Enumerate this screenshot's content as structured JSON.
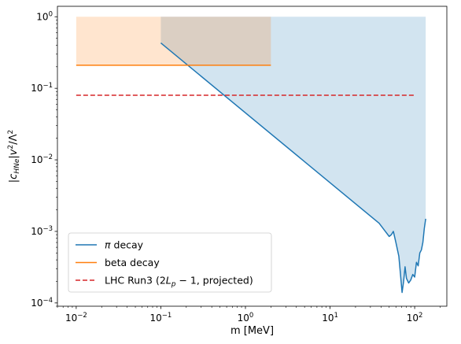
{
  "chart_data": {
    "type": "line",
    "title": "",
    "xlabel": "m [MeV]",
    "ylabel": "|c_HNe| v²/Λ²",
    "x_scale": "log",
    "y_scale": "log",
    "xlim": [
      0.006,
      240
    ],
    "ylim": [
      9e-05,
      1.4
    ],
    "x_ticks": [
      {
        "value": 0.01,
        "base": "10",
        "exp": "−2"
      },
      {
        "value": 0.1,
        "base": "10",
        "exp": "−1"
      },
      {
        "value": 1,
        "base": "10",
        "exp": "0"
      },
      {
        "value": 10,
        "base": "10",
        "exp": "1"
      },
      {
        "value": 100,
        "base": "10",
        "exp": "2"
      }
    ],
    "y_ticks": [
      {
        "value": 0.0001,
        "base": "10",
        "exp": "−4"
      },
      {
        "value": 0.001,
        "base": "10",
        "exp": "−3"
      },
      {
        "value": 0.01,
        "base": "10",
        "exp": "−2"
      },
      {
        "value": 0.1,
        "base": "10",
        "exp": "−1"
      },
      {
        "value": 1,
        "base": "10",
        "exp": "0"
      }
    ],
    "legend_position": "lower-left",
    "series": [
      {
        "name": "π decay",
        "legend_math": "π",
        "legend_text": " decay",
        "color": "#1f77b4",
        "style": "solid",
        "fill_to": 1.0,
        "fill_color": "#1f77b4",
        "fill_opacity": 0.2,
        "x": [
          0.1,
          38,
          45,
          50,
          53,
          56,
          60,
          65,
          68,
          71,
          74,
          77,
          80,
          85,
          90,
          95,
          100,
          105,
          110,
          115,
          120,
          125,
          130,
          135
        ],
        "y": [
          0.43,
          0.0013,
          0.001,
          0.00085,
          0.0009,
          0.001,
          0.0007,
          0.00045,
          0.00025,
          0.00014,
          0.0002,
          0.00032,
          0.00022,
          0.00019,
          0.00021,
          0.00025,
          0.00023,
          0.00037,
          0.00033,
          0.0005,
          0.00055,
          0.0007,
          0.0011,
          0.0015
        ]
      },
      {
        "name": "beta decay",
        "legend_math": "",
        "legend_text": "beta decay",
        "color": "#ff7f0e",
        "style": "solid",
        "fill_to": 1.0,
        "fill_color": "#ff7f0e",
        "fill_opacity": 0.2,
        "x": [
          0.01,
          2
        ],
        "y": [
          0.21,
          0.21
        ]
      },
      {
        "name": "LHC Run3 (2L_p − 1, projected)",
        "legend_math": "",
        "legend_text": "LHC Run3 (2L_p − 1, projected)",
        "color": "#d62728",
        "style": "dashed",
        "x": [
          0.01,
          100
        ],
        "y": [
          0.08,
          0.08
        ]
      }
    ]
  }
}
